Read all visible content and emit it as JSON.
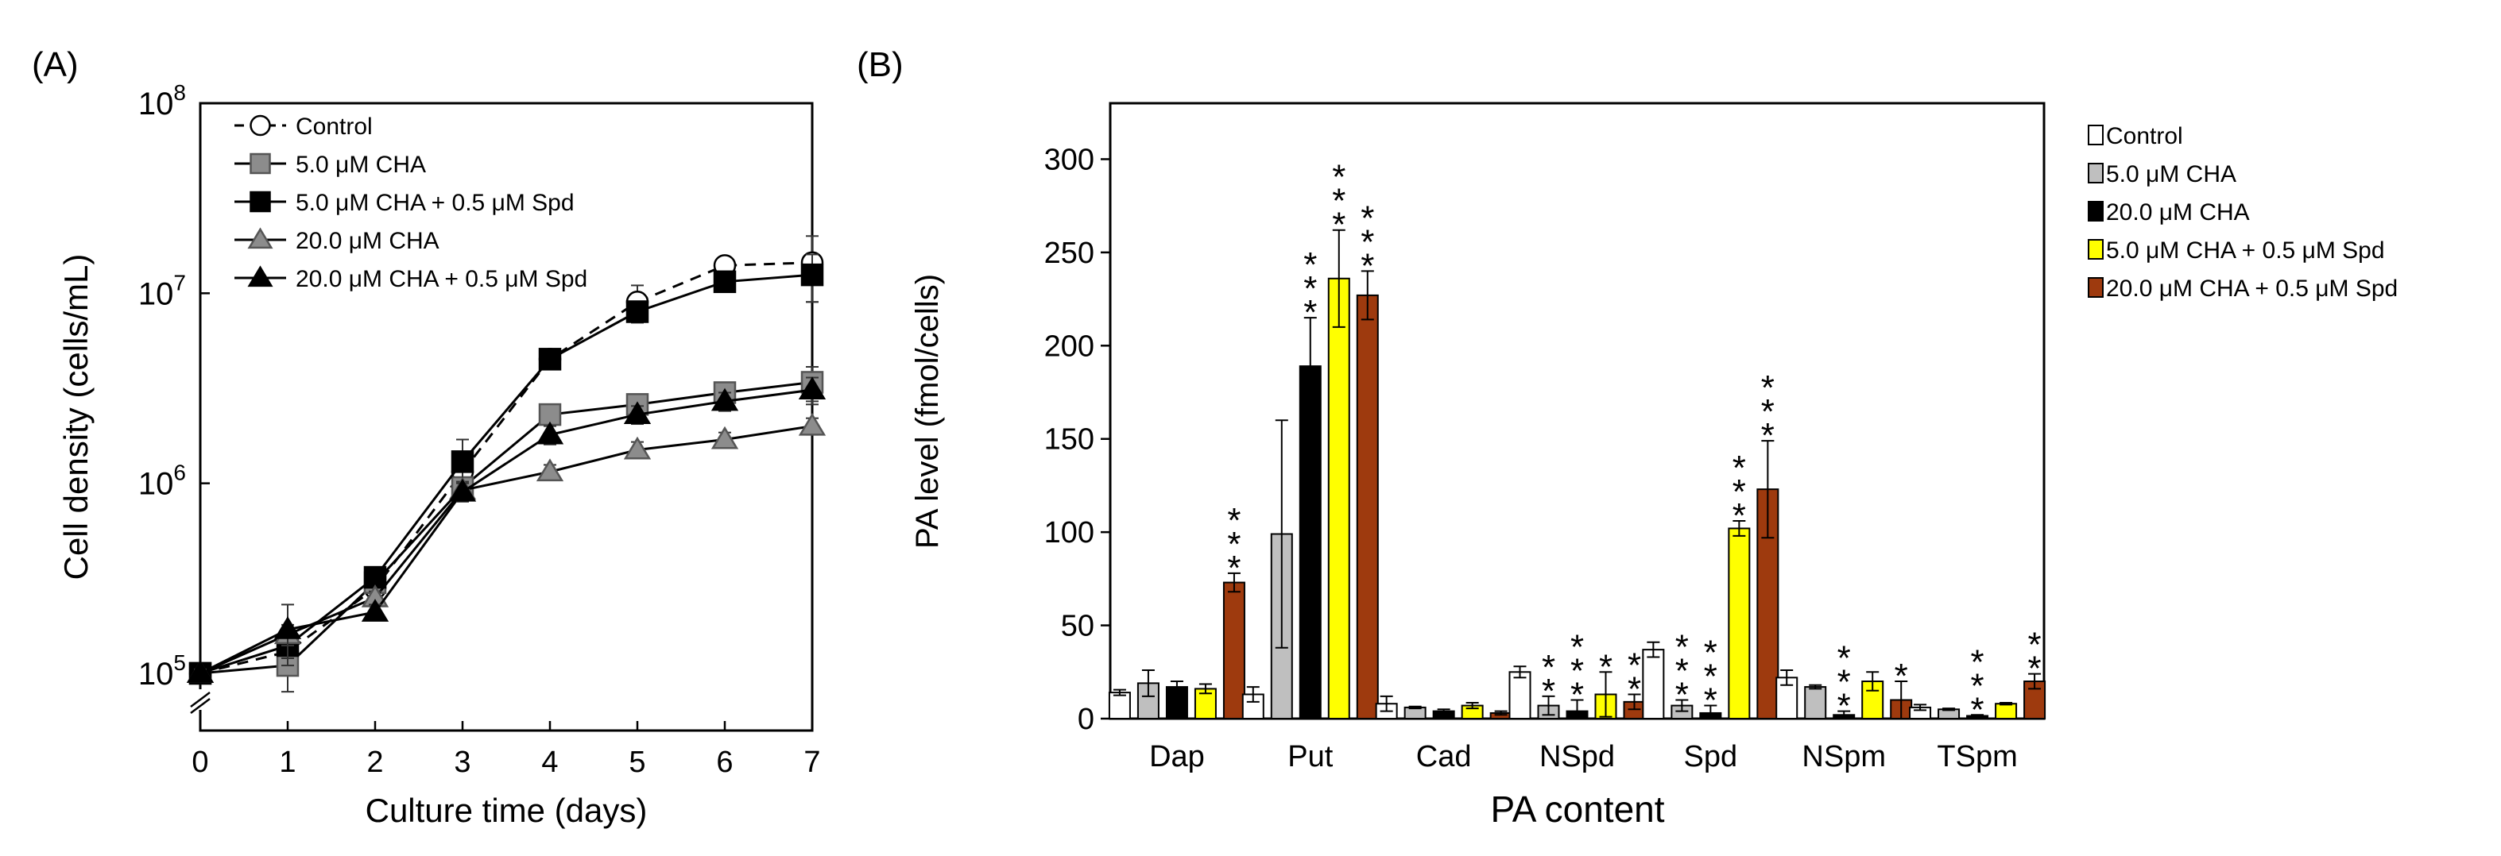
{
  "chart_data": [
    {
      "panel_label": "(A)",
      "type": "line",
      "yscale": "log",
      "xlabel": "Culture time (days)",
      "ylabel": "Cell density (cells/mL)",
      "x": [
        0,
        1,
        2,
        3,
        4,
        5,
        6,
        7
      ],
      "xlim": [
        0,
        7
      ],
      "ylim": [
        50000,
        100000000
      ],
      "y_ticks": [
        100000,
        1000000,
        10000000,
        100000000
      ],
      "y_tick_labels": [
        {
          "base": "10",
          "exp": "5"
        },
        {
          "base": "10",
          "exp": "6"
        },
        {
          "base": "10",
          "exp": "7"
        },
        {
          "base": "10",
          "exp": "8"
        }
      ],
      "legend_position": "top-left",
      "series": [
        {
          "name": "Control",
          "marker": "circle-open",
          "line": "dashed",
          "values": [
            100000,
            130000,
            280000,
            1150000,
            4500000,
            9000000,
            14000000,
            14500000
          ],
          "errors": [
            5000,
            25000,
            20000,
            200000,
            300000,
            2000000,
            1500000,
            5500000
          ]
        },
        {
          "name": "5.0 μM CHA",
          "marker": "square-gray",
          "line": "solid",
          "values": [
            100000,
            110000,
            300000,
            950000,
            2300000,
            2600000,
            3000000,
            3400000
          ],
          "errors": [
            5000,
            30000,
            20000,
            100000,
            200000,
            250000,
            300000,
            700000
          ]
        },
        {
          "name": "5.0 μM CHA + 0.5 μM Spd",
          "marker": "square-black",
          "line": "solid",
          "values": [
            100000,
            140000,
            320000,
            1300000,
            4500000,
            8000000,
            11500000,
            12500000
          ],
          "errors": [
            5000,
            20000,
            20000,
            400000,
            300000,
            1000000,
            1000000,
            3500000
          ]
        },
        {
          "name": "20.0 μM CHA",
          "marker": "triangle-gray",
          "line": "solid",
          "values": [
            100000,
            160000,
            250000,
            920000,
            1150000,
            1500000,
            1700000,
            2000000
          ],
          "errors": [
            5000,
            20000,
            20000,
            100000,
            100000,
            150000,
            150000,
            200000
          ]
        },
        {
          "name": "20.0 μM CHA + 0.5 μM Spd",
          "marker": "triangle-black",
          "line": "solid",
          "values": [
            100000,
            170000,
            210000,
            900000,
            1800000,
            2300000,
            2700000,
            3100000
          ],
          "errors": [
            5000,
            60000,
            20000,
            100000,
            200000,
            250000,
            300000,
            500000
          ]
        }
      ]
    },
    {
      "panel_label": "(B)",
      "type": "bar",
      "xlabel": "PA content",
      "ylabel": "PA level (fmol/cells)",
      "ylim": [
        0,
        330
      ],
      "y_ticks": [
        0,
        50,
        100,
        150,
        200,
        250,
        300
      ],
      "categories": [
        "Dap",
        "Put",
        "Cad",
        "NSpd",
        "Spd",
        "NSpm",
        "TSpm"
      ],
      "legend_position": "top-right",
      "series": [
        {
          "name": "Control",
          "color": "#ffffff",
          "values": [
            14,
            13,
            8,
            25,
            37,
            22,
            6
          ],
          "errors": [
            1.5,
            4,
            4,
            3,
            4,
            4,
            1.5
          ],
          "stars": [
            0,
            0,
            0,
            0,
            0,
            0,
            0
          ]
        },
        {
          "name": "5.0 μM CHA",
          "color": "#bfbfbf",
          "values": [
            19,
            99,
            6,
            7,
            7,
            17,
            5
          ],
          "errors": [
            7,
            61,
            0.5,
            5,
            3,
            1,
            0.5
          ],
          "stars": [
            0,
            0,
            0,
            2,
            3,
            0,
            0
          ]
        },
        {
          "name": "20.0 μM CHA",
          "color": "#000000",
          "values": [
            17,
            189,
            4,
            4,
            3,
            2,
            1.5
          ],
          "errors": [
            3,
            26,
            1,
            6,
            4,
            2,
            0.5
          ],
          "stars": [
            0,
            3,
            0,
            3,
            3,
            3,
            3
          ]
        },
        {
          "name": "5.0 μM CHA + 0.5 μM Spd",
          "color": "#ffff00",
          "values": [
            16,
            236,
            7,
            13,
            102,
            20,
            8
          ],
          "errors": [
            2.5,
            26,
            1.5,
            12,
            4,
            5,
            0.5
          ],
          "stars": [
            0,
            3,
            0,
            1,
            3,
            0,
            0
          ]
        },
        {
          "name": "20.0 μM CHA + 0.5 μM Spd",
          "color": "#9e3a0e",
          "values": [
            73,
            227,
            3,
            9,
            123,
            10,
            20
          ],
          "errors": [
            5,
            13,
            1,
            4,
            26,
            10,
            4
          ],
          "stars": [
            3,
            3,
            0,
            2,
            3,
            1,
            2
          ]
        }
      ]
    }
  ]
}
